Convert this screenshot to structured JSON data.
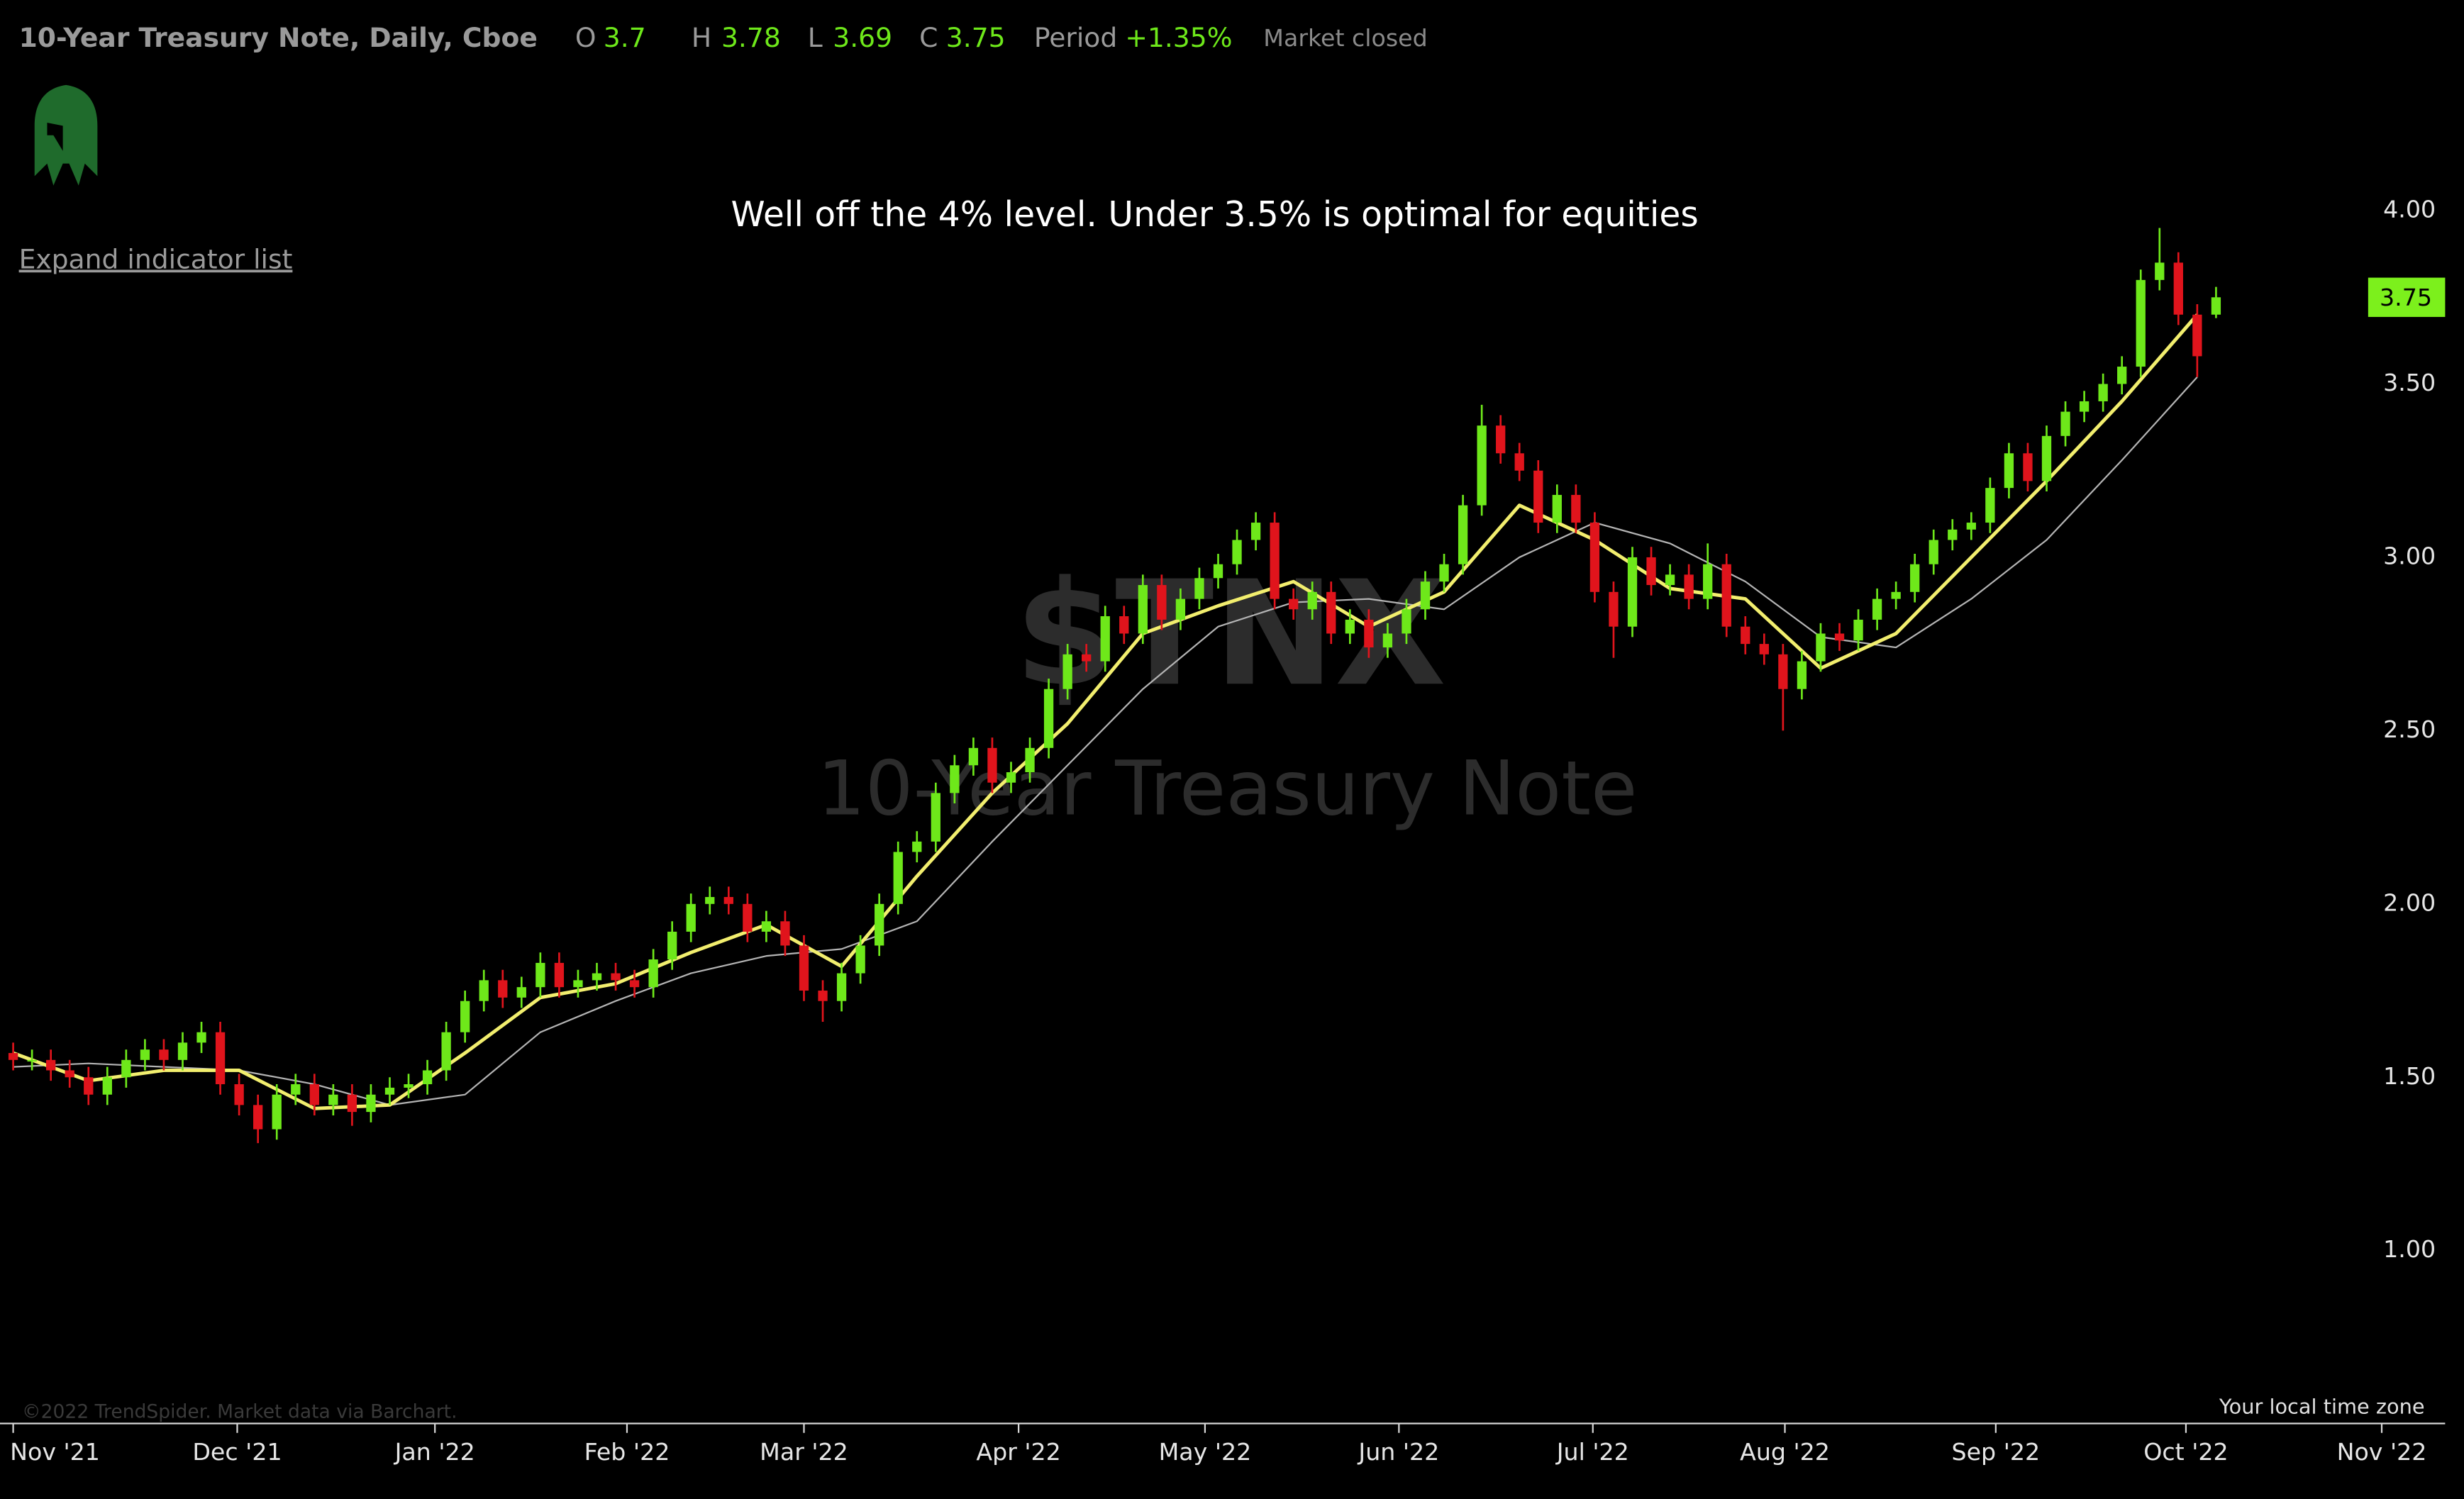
{
  "chart_data": {
    "type": "candlestick",
    "title": "10-Year Treasury Note, Daily, Cboe",
    "ohlc_labels": [
      "O",
      "H",
      "L",
      "C"
    ],
    "period_label": "Period",
    "period_change": "+1.35%",
    "status": "Market closed",
    "annotation": "Well off the 4% level. Under 3.5% is optimal for equities",
    "watermark_symbol": "$TNX",
    "watermark_name": "10-Year Treasury Note",
    "ylim": [
      0.5,
      4.6
    ],
    "yticks": [
      {
        "value": 1,
        "label": "1.00"
      },
      {
        "value": 1.5,
        "label": "1.50"
      },
      {
        "value": 2,
        "label": "2.00"
      },
      {
        "value": 2.5,
        "label": "2.50"
      },
      {
        "value": 3,
        "label": "3.00"
      },
      {
        "value": 3.5,
        "label": "3.50"
      },
      {
        "value": 4,
        "label": "4.00"
      }
    ],
    "xlim": [
      -0.7,
      128.5
    ],
    "xticks": [
      {
        "value": 0,
        "label": "Nov '21"
      },
      {
        "value": 11.9,
        "label": "Dec '21"
      },
      {
        "value": 22.4,
        "label": "Jan '22"
      },
      {
        "value": 32.6,
        "label": "Feb '22"
      },
      {
        "value": 42,
        "label": "Mar '22"
      },
      {
        "value": 53.4,
        "label": "Apr '22"
      },
      {
        "value": 63.3,
        "label": "May '22"
      },
      {
        "value": 73.6,
        "label": "Jun '22"
      },
      {
        "value": 83.9,
        "label": "Jul '22"
      },
      {
        "value": 94.1,
        "label": "Aug '22"
      },
      {
        "value": 105.3,
        "label": "Sep '22"
      },
      {
        "value": 115.4,
        "label": "Oct '22"
      },
      {
        "value": 125.8,
        "label": "Nov '22"
      }
    ],
    "price_tag_color": "#7cf01c",
    "series": [
      {
        "type": "candlestick",
        "up_color": "#6ee81a",
        "down_color": "#e0141c",
        "open": [
          1.57,
          1.55,
          1.55,
          1.52,
          1.5,
          1.45,
          1.5,
          1.55,
          1.58,
          1.55,
          1.6,
          1.63,
          1.48,
          1.42,
          1.35,
          1.45,
          1.48,
          1.42,
          1.45,
          1.4,
          1.45,
          1.47,
          1.48,
          1.52,
          1.63,
          1.72,
          1.78,
          1.73,
          1.76,
          1.83,
          1.76,
          1.78,
          1.8,
          1.78,
          1.76,
          1.84,
          1.92,
          2.0,
          2.02,
          2.0,
          1.92,
          1.95,
          1.88,
          1.75,
          1.72,
          1.8,
          1.88,
          2.0,
          2.15,
          2.18,
          2.32,
          2.4,
          2.45,
          2.35,
          2.38,
          2.45,
          2.62,
          2.72,
          2.7,
          2.83,
          2.78,
          2.92,
          2.82,
          2.88,
          2.94,
          2.98,
          3.05,
          3.1,
          2.88,
          2.85,
          2.9,
          2.78,
          2.82,
          2.74,
          2.78,
          2.85,
          2.93,
          2.98,
          3.15,
          3.38,
          3.3,
          3.25,
          3.1,
          3.18,
          3.1,
          2.9,
          2.8,
          3.0,
          2.92,
          2.95,
          2.88,
          2.98,
          2.8,
          2.75,
          2.72,
          2.62,
          2.7,
          2.78,
          2.76,
          2.82,
          2.88,
          2.9,
          2.98,
          3.05,
          3.08,
          3.1,
          3.2,
          3.3,
          3.22,
          3.35,
          3.42,
          3.45,
          3.5,
          3.55,
          3.8,
          3.85,
          3.7,
          3.7
        ],
        "high": [
          1.6,
          1.58,
          1.58,
          1.55,
          1.53,
          1.53,
          1.58,
          1.61,
          1.61,
          1.63,
          1.66,
          1.66,
          1.51,
          1.45,
          1.48,
          1.51,
          1.51,
          1.48,
          1.48,
          1.48,
          1.5,
          1.51,
          1.55,
          1.66,
          1.75,
          1.81,
          1.81,
          1.79,
          1.86,
          1.86,
          1.81,
          1.83,
          1.83,
          1.81,
          1.87,
          1.95,
          2.03,
          2.05,
          2.05,
          2.03,
          1.98,
          1.98,
          1.91,
          1.78,
          1.83,
          1.91,
          2.03,
          2.18,
          2.21,
          2.35,
          2.43,
          2.48,
          2.48,
          2.41,
          2.48,
          2.65,
          2.75,
          2.75,
          2.86,
          2.86,
          2.95,
          2.95,
          2.91,
          2.97,
          3.01,
          3.08,
          3.13,
          3.13,
          2.91,
          2.93,
          2.93,
          2.85,
          2.85,
          2.81,
          2.88,
          2.96,
          3.01,
          3.18,
          3.44,
          3.41,
          3.33,
          3.28,
          3.21,
          3.21,
          3.13,
          2.93,
          3.03,
          3.03,
          2.98,
          2.98,
          3.04,
          3.01,
          2.83,
          2.78,
          2.75,
          2.73,
          2.81,
          2.81,
          2.85,
          2.91,
          2.93,
          3.01,
          3.08,
          3.11,
          3.13,
          3.23,
          3.33,
          3.33,
          3.38,
          3.45,
          3.48,
          3.53,
          3.58,
          3.83,
          3.95,
          3.88,
          3.73,
          3.78
        ],
        "low": [
          1.52,
          1.52,
          1.49,
          1.47,
          1.42,
          1.42,
          1.47,
          1.52,
          1.52,
          1.52,
          1.57,
          1.45,
          1.39,
          1.31,
          1.32,
          1.42,
          1.39,
          1.39,
          1.36,
          1.37,
          1.42,
          1.44,
          1.45,
          1.49,
          1.6,
          1.69,
          1.7,
          1.7,
          1.73,
          1.73,
          1.73,
          1.75,
          1.75,
          1.73,
          1.73,
          1.81,
          1.89,
          1.97,
          1.97,
          1.89,
          1.89,
          1.85,
          1.72,
          1.66,
          1.69,
          1.77,
          1.85,
          1.97,
          2.12,
          2.15,
          2.29,
          2.37,
          2.32,
          2.32,
          2.35,
          2.42,
          2.59,
          2.67,
          2.67,
          2.75,
          2.75,
          2.79,
          2.79,
          2.85,
          2.91,
          2.95,
          3.02,
          2.85,
          2.82,
          2.82,
          2.75,
          2.75,
          2.71,
          2.71,
          2.75,
          2.82,
          2.9,
          2.95,
          3.12,
          3.27,
          3.22,
          3.07,
          3.07,
          3.07,
          2.87,
          2.71,
          2.77,
          2.89,
          2.89,
          2.85,
          2.85,
          2.77,
          2.72,
          2.69,
          2.5,
          2.59,
          2.67,
          2.73,
          2.73,
          2.79,
          2.85,
          2.87,
          2.95,
          3.02,
          3.05,
          3.07,
          3.17,
          3.19,
          3.19,
          3.32,
          3.39,
          3.42,
          3.47,
          3.52,
          3.77,
          3.67,
          3.52,
          3.69
        ],
        "close": [
          1.55,
          1.55,
          1.52,
          1.5,
          1.45,
          1.5,
          1.55,
          1.58,
          1.55,
          1.6,
          1.63,
          1.48,
          1.42,
          1.35,
          1.45,
          1.48,
          1.42,
          1.45,
          1.4,
          1.45,
          1.47,
          1.48,
          1.52,
          1.63,
          1.72,
          1.78,
          1.73,
          1.76,
          1.83,
          1.76,
          1.78,
          1.8,
          1.78,
          1.76,
          1.84,
          1.92,
          2.0,
          2.02,
          2.0,
          1.92,
          1.95,
          1.88,
          1.75,
          1.72,
          1.8,
          1.88,
          2.0,
          2.15,
          2.18,
          2.32,
          2.4,
          2.45,
          2.35,
          2.38,
          2.45,
          2.62,
          2.72,
          2.7,
          2.83,
          2.78,
          2.92,
          2.82,
          2.88,
          2.94,
          2.98,
          3.05,
          3.1,
          2.88,
          2.85,
          2.9,
          2.78,
          2.82,
          2.74,
          2.78,
          2.85,
          2.93,
          2.98,
          3.15,
          3.38,
          3.3,
          3.25,
          3.1,
          3.18,
          3.1,
          2.9,
          2.8,
          3.0,
          2.92,
          2.95,
          2.88,
          2.98,
          2.8,
          2.75,
          2.72,
          2.62,
          2.7,
          2.78,
          2.76,
          2.82,
          2.88,
          2.9,
          2.98,
          3.05,
          3.08,
          3.1,
          3.2,
          3.3,
          3.22,
          3.35,
          3.42,
          3.45,
          3.5,
          3.55,
          3.8,
          3.85,
          3.7,
          3.58,
          3.75
        ]
      },
      {
        "type": "line",
        "color": "#f2ee6e",
        "x": [
          0,
          4,
          8,
          12,
          16,
          20,
          24,
          28,
          32,
          36,
          40,
          44,
          48,
          52,
          56,
          60,
          64,
          68,
          72,
          76,
          80,
          84,
          88,
          92,
          96,
          100,
          104,
          108,
          112,
          116
        ],
        "values": [
          1.57,
          1.49,
          1.52,
          1.52,
          1.41,
          1.42,
          1.57,
          1.73,
          1.77,
          1.86,
          1.94,
          1.82,
          2.08,
          2.32,
          2.52,
          2.78,
          2.86,
          2.93,
          2.8,
          2.9,
          3.15,
          3.05,
          2.91,
          2.88,
          2.68,
          2.78,
          3.0,
          3.22,
          3.45,
          3.7
        ]
      },
      {
        "type": "line",
        "color": "#b4b4b4",
        "x": [
          0,
          4,
          8,
          12,
          16,
          20,
          24,
          28,
          32,
          36,
          40,
          44,
          48,
          52,
          56,
          60,
          64,
          68,
          72,
          76,
          80,
          84,
          88,
          92,
          96,
          100,
          104,
          108,
          112,
          116
        ],
        "values": [
          1.53,
          1.54,
          1.53,
          1.52,
          1.48,
          1.42,
          1.45,
          1.63,
          1.72,
          1.8,
          1.85,
          1.87,
          1.95,
          2.18,
          2.4,
          2.62,
          2.8,
          2.87,
          2.88,
          2.85,
          3.0,
          3.1,
          3.04,
          2.93,
          2.77,
          2.74,
          2.88,
          3.05,
          3.28,
          3.52
        ]
      }
    ]
  },
  "ui": {
    "expand_indicators": "Expand indicator list",
    "copyright": "©2022 TrendSpider. Market data via Barchart.",
    "timezone": "Your local time zone"
  }
}
